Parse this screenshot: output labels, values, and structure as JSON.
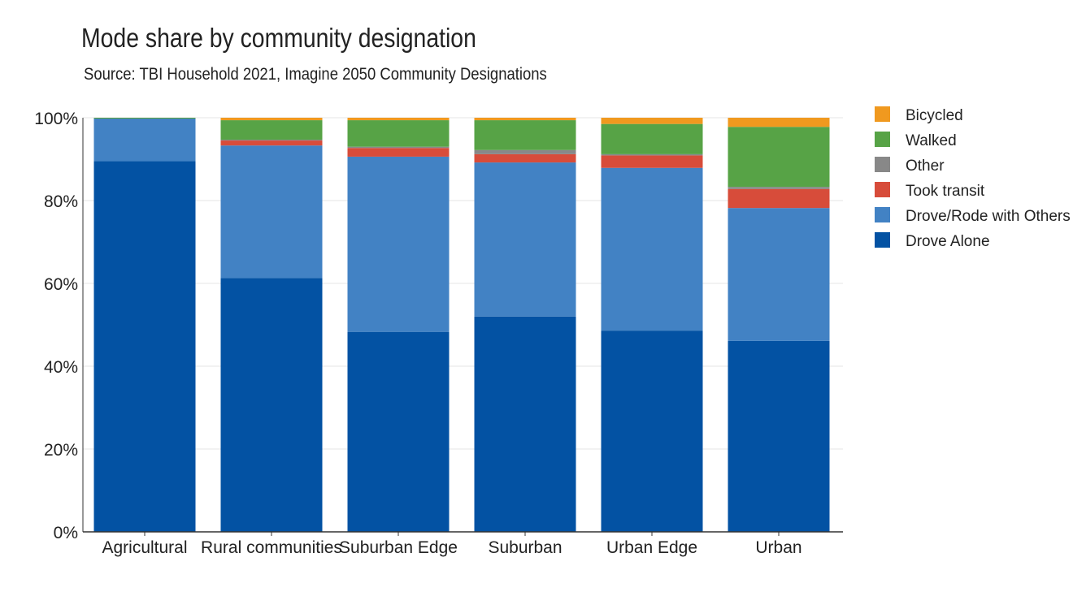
{
  "chart_data": {
    "type": "bar",
    "stacked": true,
    "title": "Mode share by community designation",
    "subtitle": "Source: TBI Household 2021, Imagine 2050 Community Designations",
    "xlabel": "",
    "ylabel": "",
    "ylim": [
      0,
      100
    ],
    "yticks": [
      "0%",
      "20%",
      "40%",
      "60%",
      "80%",
      "100%"
    ],
    "grid": true,
    "legend_position": "right",
    "categories": [
      "Agricultural",
      "Rural communities",
      "Suburban Edge",
      "Suburban",
      "Urban Edge",
      "Urban"
    ],
    "series": [
      {
        "name": "Drove Alone",
        "color": "#0352a3",
        "values": [
          89.5,
          61.3,
          48.3,
          52.0,
          48.6,
          46.1
        ]
      },
      {
        "name": "Drove/Rode with Others",
        "color": "#4282c4",
        "values": [
          10.3,
          32.0,
          42.3,
          37.2,
          39.3,
          32.1
        ]
      },
      {
        "name": "Took transit",
        "color": "#d74c3a",
        "values": [
          0.0,
          1.2,
          2.1,
          2.0,
          3.0,
          4.6
        ]
      },
      {
        "name": "Other",
        "color": "#888888",
        "values": [
          0.0,
          0.2,
          0.3,
          1.0,
          0.3,
          0.5
        ]
      },
      {
        "name": "Walked",
        "color": "#57a346",
        "values": [
          0.2,
          4.7,
          6.4,
          7.2,
          7.3,
          14.5
        ]
      },
      {
        "name": "Bicycled",
        "color": "#f0991f",
        "values": [
          0.0,
          0.6,
          0.6,
          0.6,
          1.5,
          2.2
        ]
      }
    ],
    "legend_order": [
      "Bicycled",
      "Walked",
      "Other",
      "Took transit",
      "Drove/Rode with Others",
      "Drove Alone"
    ]
  }
}
